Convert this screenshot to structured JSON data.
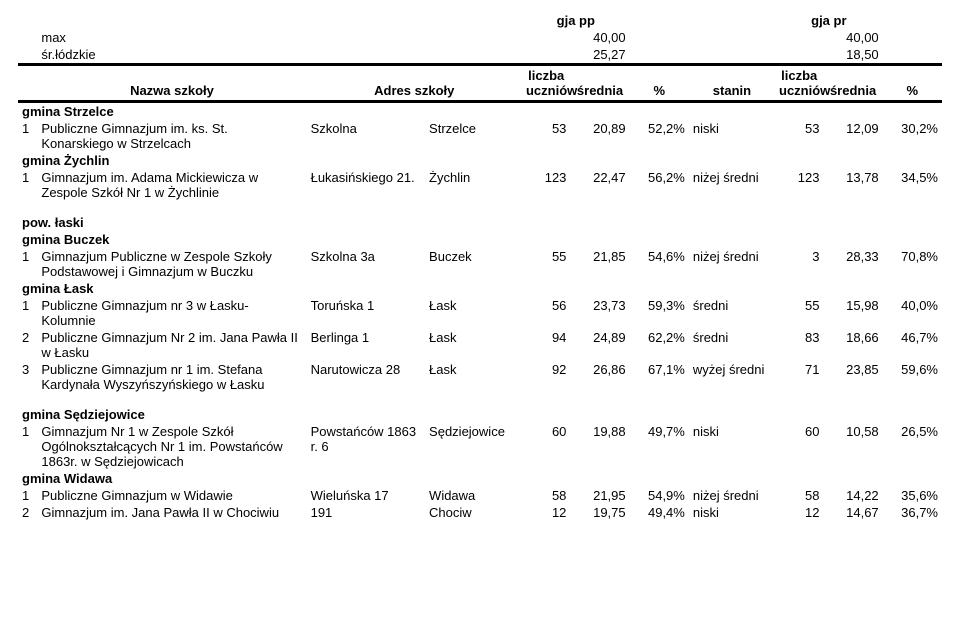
{
  "header": {
    "gja_pp": "gja pp",
    "gja_pr": "gja pr",
    "max_lbl": "max",
    "max_pp": "40,00",
    "max_pr": "40,00",
    "avg_lbl": "śr.łódzkie",
    "avg_pp": "25,27",
    "avg_pr": "18,50",
    "nazwa": "Nazwa szkoły",
    "adres": "Adres szkoły",
    "liczba": "liczba uczniów",
    "srednia": "średnia",
    "pct": "%",
    "stanin": "stanin"
  },
  "groups": [
    {
      "title": "gmina Strzelce",
      "rows": [
        {
          "idx": "1",
          "name": "Publiczne Gimnazjum im. ks. St. Konarskiego w Strzelcach",
          "addr": "Szkolna",
          "city": "Strzelce",
          "n1": "53",
          "avg1": "20,89",
          "pct1": "52,2%",
          "stanin": "niski",
          "n2": "53",
          "avg2": "12,09",
          "pct2": "30,2%"
        }
      ]
    },
    {
      "title": "gmina Żychlin",
      "rows": [
        {
          "idx": "1",
          "name": "Gimnazjum im. Adama Mickiewicza w Zespole Szkół Nr 1 w Żychlinie",
          "addr": "Łukasińskiego 21.",
          "city": "Żychlin",
          "n1": "123",
          "avg1": "22,47",
          "pct1": "56,2%",
          "stanin": "niżej średni",
          "n2": "123",
          "avg2": "13,78",
          "pct2": "34,5%"
        }
      ]
    },
    {
      "title": "pow. łaski",
      "rows": []
    },
    {
      "title": "gmina Buczek",
      "rows": [
        {
          "idx": "1",
          "name": "Gimnazjum Publiczne w Zespole Szkoły Podstawowej i Gimnazjum w Buczku",
          "addr": "Szkolna 3a",
          "city": "Buczek",
          "n1": "55",
          "avg1": "21,85",
          "pct1": "54,6%",
          "stanin": "niżej średni",
          "n2": "3",
          "avg2": "28,33",
          "pct2": "70,8%"
        }
      ]
    },
    {
      "title": "gmina Łask",
      "rows": [
        {
          "idx": "1",
          "name": "Publiczne Gimnazjum nr 3 w Łasku-Kolumnie",
          "addr": "Toruńska 1",
          "city": "Łask",
          "n1": "56",
          "avg1": "23,73",
          "pct1": "59,3%",
          "stanin": "średni",
          "n2": "55",
          "avg2": "15,98",
          "pct2": "40,0%"
        },
        {
          "idx": "2",
          "name": "Publiczne Gimnazjum Nr 2  im. Jana Pawła II w Łasku",
          "addr": "Berlinga 1",
          "city": "Łask",
          "n1": "94",
          "avg1": "24,89",
          "pct1": "62,2%",
          "stanin": "średni",
          "n2": "83",
          "avg2": "18,66",
          "pct2": "46,7%"
        },
        {
          "idx": "3",
          "name": "Publiczne Gimnazjum nr 1 im. Stefana Kardynała Wyszyńszyńskiego w Łasku",
          "addr": "Narutowicza 28",
          "city": "Łask",
          "n1": "92",
          "avg1": "26,86",
          "pct1": "67,1%",
          "stanin": "wyżej średni",
          "n2": "71",
          "avg2": "23,85",
          "pct2": "59,6%"
        }
      ]
    },
    {
      "title": "gmina Sędziejowice",
      "rows": [
        {
          "idx": "1",
          "name": "Gimnazjum Nr 1 w Zespole Szkół Ogólnokształcących Nr 1 im. Powstańców 1863r. w Sędziejowicach",
          "addr": "Powstańców 1863 r. 6",
          "city": "Sędziejowice",
          "n1": "60",
          "avg1": "19,88",
          "pct1": "49,7%",
          "stanin": "niski",
          "n2": "60",
          "avg2": "10,58",
          "pct2": "26,5%"
        }
      ]
    },
    {
      "title": "gmina Widawa",
      "rows": [
        {
          "idx": "1",
          "name": "Publiczne Gimnazjum w Widawie",
          "addr": "Wieluńska 17",
          "city": "Widawa",
          "n1": "58",
          "avg1": "21,95",
          "pct1": "54,9%",
          "stanin": "niżej średni",
          "n2": "58",
          "avg2": "14,22",
          "pct2": "35,6%"
        },
        {
          "idx": "2",
          "name": "Gimnazjum im. Jana Pawła II w Chociwiu",
          "addr": "191",
          "city": "Chociw",
          "n1": "12",
          "avg1": "19,75",
          "pct1": "49,4%",
          "stanin": "niski",
          "n2": "12",
          "avg2": "14,67",
          "pct2": "36,7%"
        }
      ]
    }
  ]
}
